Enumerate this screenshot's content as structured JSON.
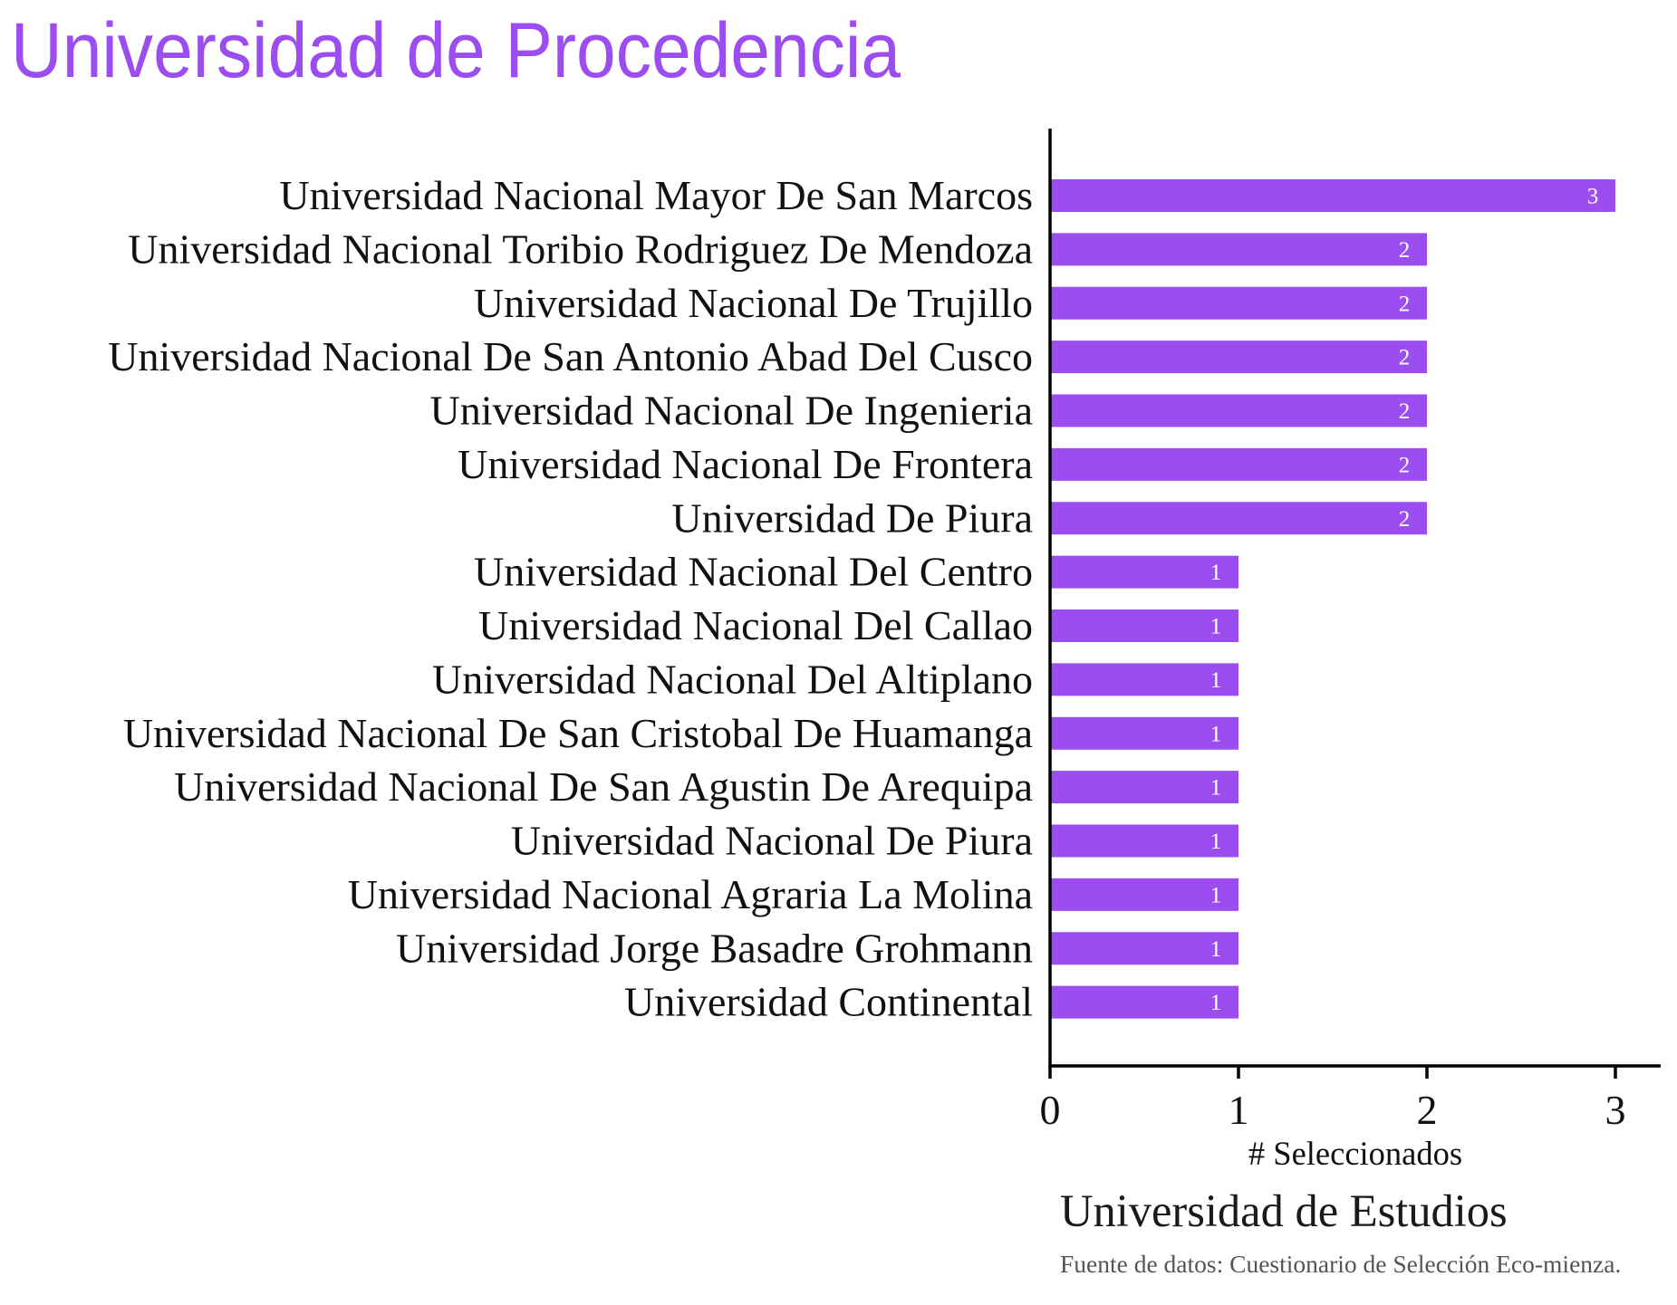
{
  "chart_data": {
    "type": "bar",
    "orientation": "horizontal",
    "title": "Universidad de Procedencia",
    "categories": [
      "Universidad Nacional Mayor De San Marcos",
      "Universidad Nacional Toribio Rodriguez De Mendoza",
      "Universidad Nacional De Trujillo",
      "Universidad Nacional De San Antonio Abad Del Cusco",
      "Universidad Nacional De Ingenieria",
      "Universidad Nacional De Frontera",
      "Universidad De Piura",
      "Universidad Nacional Del Centro",
      "Universidad Nacional Del Callao",
      "Universidad Nacional Del Altiplano",
      "Universidad Nacional De San Cristobal De Huamanga",
      "Universidad Nacional De San Agustin De Arequipa",
      "Universidad Nacional De Piura",
      "Universidad Nacional Agraria La Molina",
      "Universidad Jorge Basadre Grohmann",
      "Universidad Continental"
    ],
    "values": [
      3,
      2,
      2,
      2,
      2,
      2,
      2,
      1,
      1,
      1,
      1,
      1,
      1,
      1,
      1,
      1
    ],
    "xlabel": "# Seleccionados",
    "xlim": [
      0,
      3.24
    ],
    "xticks": [
      0,
      1,
      2,
      3
    ],
    "caption": "Universidad de Estudios",
    "source": "Fuente de datos: Cuestionario de Selección Eco-mienza.",
    "grid": false,
    "legend": "none",
    "colors": {
      "title": "#9b4df0",
      "bar": "#9b4df0",
      "data_label": "#ffffff",
      "axis": "#000000",
      "text": "#111111",
      "caption": "#1a1a1a",
      "source": "#555555"
    }
  }
}
